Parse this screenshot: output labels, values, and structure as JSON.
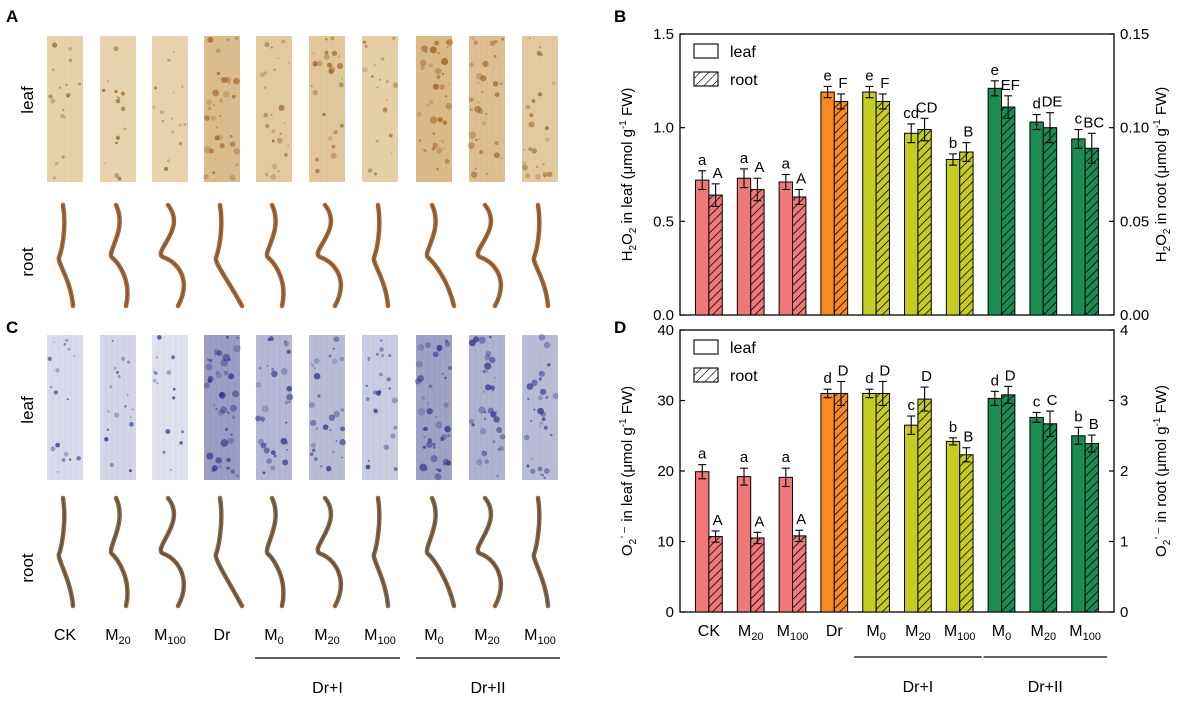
{
  "panel_labels": {
    "A": "A",
    "B": "B",
    "C": "C",
    "D": "D"
  },
  "row_labels": {
    "leaf": "leaf",
    "root": "root"
  },
  "photo_x_labels": [
    {
      "base": "CK",
      "sub": ""
    },
    {
      "base": "M",
      "sub": "20"
    },
    {
      "base": "M",
      "sub": "100"
    },
    {
      "base": "Dr",
      "sub": ""
    },
    {
      "base": "M",
      "sub": "0"
    },
    {
      "base": "M",
      "sub": "20"
    },
    {
      "base": "M",
      "sub": "100"
    },
    {
      "base": "M",
      "sub": "0"
    },
    {
      "base": "M",
      "sub": "20"
    },
    {
      "base": "M",
      "sub": "100"
    }
  ],
  "groups": {
    "dr1": "Dr+I",
    "dr2": "Dr+II"
  },
  "colors": {
    "pink": "#f07878",
    "orange": "#f78a22",
    "olive": "#c5cc22",
    "green": "#1b8c52",
    "dab_light": "#ead9b6",
    "dab_dark": "#b97a2f",
    "nbt_light": "#e9ebf3",
    "nbt_dark": "#2b2f82",
    "root_dab": "#a36b3d",
    "root_nbt": "#8c6a3a"
  },
  "photos": {
    "A": {
      "leaf_stain": [
        0.15,
        0.1,
        0.1,
        0.55,
        0.3,
        0.35,
        0.2,
        0.6,
        0.5,
        0.3
      ],
      "root_stain": [
        0.6,
        0.55,
        0.55,
        0.7,
        0.7,
        0.7,
        0.65,
        0.7,
        0.65,
        0.6
      ]
    },
    "C": {
      "leaf_stain": [
        0.15,
        0.2,
        0.1,
        0.75,
        0.5,
        0.45,
        0.3,
        0.7,
        0.55,
        0.45
      ],
      "root_stain": [
        0.3,
        0.3,
        0.3,
        0.6,
        0.3,
        0.3,
        0.3,
        0.6,
        0.4,
        0.3
      ]
    }
  },
  "chart_data": [
    {
      "panel": "B",
      "type": "bar",
      "categories": [
        "CK",
        "M20",
        "M100",
        "Dr",
        "M0",
        "M20",
        "M100",
        "M0",
        "M20",
        "M100"
      ],
      "category_labels": [
        {
          "base": "CK",
          "sub": ""
        },
        {
          "base": "M",
          "sub": "20"
        },
        {
          "base": "M",
          "sub": "100"
        },
        {
          "base": "Dr",
          "sub": ""
        },
        {
          "base": "M",
          "sub": "0"
        },
        {
          "base": "M",
          "sub": "20"
        },
        {
          "base": "M",
          "sub": "100"
        },
        {
          "base": "M",
          "sub": "0"
        },
        {
          "base": "M",
          "sub": "20"
        },
        {
          "base": "M",
          "sub": "100"
        }
      ],
      "bar_color_keys": [
        "pink",
        "pink",
        "pink",
        "orange",
        "olive",
        "olive",
        "olive",
        "green",
        "green",
        "green"
      ],
      "series": [
        {
          "name": "leaf",
          "axis": "left",
          "pattern": "solid",
          "values": [
            0.72,
            0.73,
            0.71,
            1.19,
            1.19,
            0.97,
            0.83,
            1.21,
            1.03,
            0.94
          ],
          "errors": [
            0.05,
            0.05,
            0.04,
            0.03,
            0.03,
            0.05,
            0.03,
            0.04,
            0.04,
            0.05
          ],
          "letters": [
            "a",
            "a",
            "a",
            "e",
            "e",
            "cd",
            "b",
            "e",
            "d",
            "c"
          ]
        },
        {
          "name": "root",
          "axis": "right",
          "pattern": "hatched",
          "values": [
            0.064,
            0.067,
            0.063,
            0.114,
            0.114,
            0.099,
            0.087,
            0.111,
            0.1,
            0.089
          ],
          "errors": [
            0.006,
            0.006,
            0.004,
            0.004,
            0.004,
            0.006,
            0.005,
            0.006,
            0.008,
            0.008
          ],
          "letters": [
            "A",
            "A",
            "A",
            "F",
            "F",
            "CD",
            "B",
            "EF",
            "DE",
            "BC"
          ]
        }
      ],
      "ylim_left": [
        0.0,
        1.5
      ],
      "yticks_left": [
        "0.0",
        "0.5",
        "1.0",
        "1.5"
      ],
      "ylim_right": [
        0.0,
        0.15
      ],
      "yticks_right": [
        "0.00",
        "0.05",
        "0.10",
        "0.15"
      ],
      "ylabel_left": {
        "pre": "H",
        "sub1": "2",
        "mid": "O",
        "sub2": "2",
        "post": " in leaf (μmol g",
        "sup": "-1",
        "end": " FW)"
      },
      "ylabel_right": {
        "pre": "H",
        "sub1": "2",
        "mid": "O",
        "sub2": "2",
        "post": " in root (μmol g",
        "sup": "-1",
        "end": " FW)"
      },
      "legend": [
        "leaf",
        "root"
      ],
      "legend_position": "top-left"
    },
    {
      "panel": "D",
      "type": "bar",
      "categories": [
        "CK",
        "M20",
        "M100",
        "Dr",
        "M0",
        "M20",
        "M100",
        "M0",
        "M20",
        "M100"
      ],
      "category_labels": [
        {
          "base": "CK",
          "sub": ""
        },
        {
          "base": "M",
          "sub": "20"
        },
        {
          "base": "M",
          "sub": "100"
        },
        {
          "base": "Dr",
          "sub": ""
        },
        {
          "base": "M",
          "sub": "0"
        },
        {
          "base": "M",
          "sub": "20"
        },
        {
          "base": "M",
          "sub": "100"
        },
        {
          "base": "M",
          "sub": "0"
        },
        {
          "base": "M",
          "sub": "20"
        },
        {
          "base": "M",
          "sub": "100"
        }
      ],
      "bar_color_keys": [
        "pink",
        "pink",
        "pink",
        "orange",
        "olive",
        "olive",
        "olive",
        "green",
        "green",
        "green"
      ],
      "series": [
        {
          "name": "leaf",
          "axis": "left",
          "pattern": "solid",
          "values": [
            19.9,
            19.2,
            19.1,
            31.0,
            31.0,
            26.5,
            24.2,
            30.3,
            27.6,
            25.0
          ],
          "errors": [
            1.0,
            1.2,
            1.3,
            0.6,
            0.6,
            1.3,
            0.5,
            1.0,
            0.7,
            1.2
          ],
          "letters": [
            "a",
            "a",
            "a",
            "d",
            "d",
            "c",
            "b",
            "d",
            "c",
            "b"
          ]
        },
        {
          "name": "root",
          "axis": "right",
          "pattern": "hatched",
          "values": [
            1.07,
            1.05,
            1.08,
            3.1,
            3.1,
            3.02,
            2.23,
            3.08,
            2.67,
            2.39
          ],
          "errors": [
            0.08,
            0.08,
            0.08,
            0.17,
            0.17,
            0.17,
            0.1,
            0.12,
            0.18,
            0.12
          ],
          "letters": [
            "A",
            "A",
            "A",
            "D",
            "D",
            "D",
            "B",
            "D",
            "C",
            "B"
          ]
        }
      ],
      "ylim_left": [
        0,
        40
      ],
      "yticks_left": [
        "0",
        "10",
        "20",
        "30",
        "40"
      ],
      "ylim_right": [
        0,
        4
      ],
      "yticks_right": [
        "0",
        "1",
        "2",
        "3",
        "4"
      ],
      "ylabel_left": {
        "pre": "O",
        "sub1": "2",
        "mid": "",
        "sub2": "",
        "post": "˙⁻ in leaf (μmol g",
        "sup": "-1",
        "end": " FW)"
      },
      "ylabel_right": {
        "pre": "O",
        "sub1": "2",
        "mid": "",
        "sub2": "",
        "post": "˙⁻ in root (μmol g",
        "sup": "-1",
        "end": " FW)"
      },
      "legend": [
        "leaf",
        "root"
      ],
      "legend_position": "top-left"
    }
  ]
}
